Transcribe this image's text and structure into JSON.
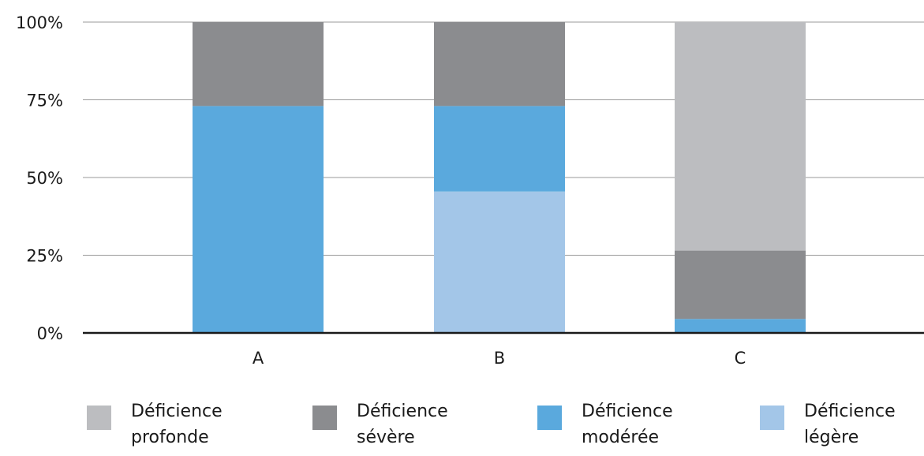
{
  "chart_data": {
    "type": "bar",
    "stacked": true,
    "categories": [
      "A",
      "B",
      "C"
    ],
    "yticks": [
      "0%",
      "25%",
      "50%",
      "75%",
      "100%"
    ],
    "ylim": [
      0,
      100
    ],
    "grid": true,
    "legend_position": "bottom",
    "series": [
      {
        "name": "Déficience légère",
        "label_lines": [
          "Déficience",
          "légère"
        ],
        "color": "#a3c6e8",
        "values": [
          0,
          45.5,
          0
        ]
      },
      {
        "name": "Déficience modérée",
        "label_lines": [
          "Déficience",
          "modérée"
        ],
        "color": "#5aa9dd",
        "values": [
          73,
          27.5,
          4.5
        ]
      },
      {
        "name": "Déficience sévère",
        "label_lines": [
          "Déficience",
          "sévère"
        ],
        "color": "#8b8c8f",
        "values": [
          27,
          27,
          22
        ]
      },
      {
        "name": "Déficience profonde",
        "label_lines": [
          "Déficience",
          "profonde"
        ],
        "color": "#bcbdc0",
        "values": [
          0,
          0,
          73.5
        ]
      }
    ],
    "legend_order": [
      3,
      2,
      1,
      0
    ]
  }
}
